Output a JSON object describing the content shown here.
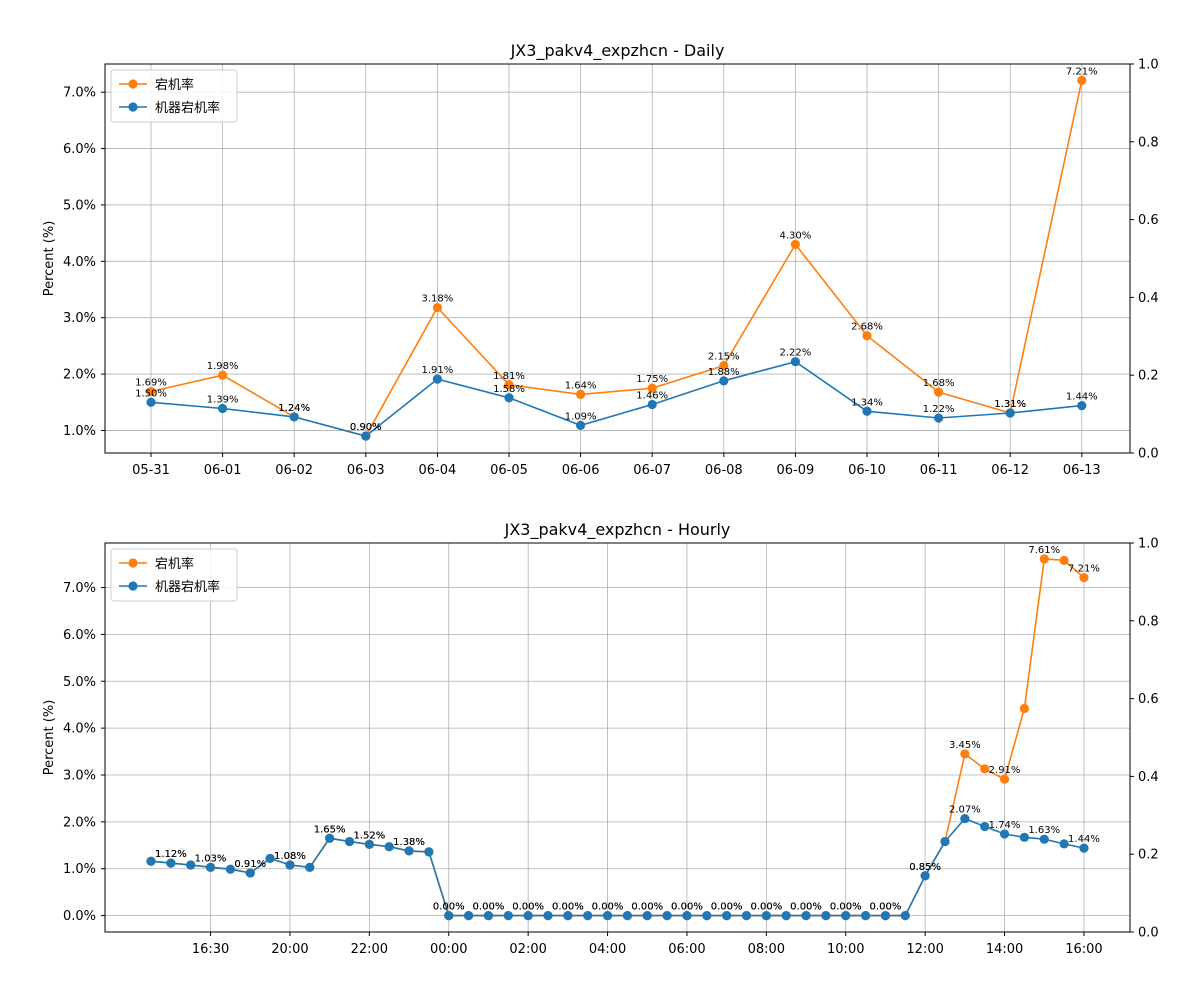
{
  "colors": {
    "series_a": "#ff7f0e",
    "series_b": "#1f77b4",
    "grid": "#b0b0b0"
  },
  "chart_data": [
    {
      "type": "line",
      "title": "JX3_pakv4_expzhcn - Daily",
      "ylabel": "Percent (%)",
      "x_tick_labels": [
        "05-31",
        "06-01",
        "06-02",
        "06-03",
        "06-04",
        "06-05",
        "06-06",
        "06-07",
        "06-08",
        "06-09",
        "06-10",
        "06-11",
        "06-12",
        "06-13"
      ],
      "ylim": [
        0.6,
        7.5
      ],
      "y_ticks": [
        1,
        2,
        3,
        4,
        5,
        6,
        7
      ],
      "y_tick_labels": [
        "1.0%",
        "2.0%",
        "3.0%",
        "4.0%",
        "5.0%",
        "6.0%",
        "7.0%"
      ],
      "y2_ticks": [
        0.0,
        0.2,
        0.4,
        0.6,
        0.8,
        1.0
      ],
      "y2_tick_labels": [
        "0.0",
        "0.2",
        "0.4",
        "0.6",
        "0.8",
        "1.0"
      ],
      "grid": true,
      "legend_position": "top-left",
      "series": [
        {
          "name": "宕机率",
          "values": [
            1.69,
            1.98,
            1.24,
            0.9,
            3.18,
            1.81,
            1.64,
            1.75,
            2.15,
            4.3,
            2.68,
            1.68,
            1.31,
            7.21
          ],
          "labels": [
            "1.69%",
            "1.98%",
            "1.24%",
            "0.90%",
            "3.18%",
            "1.81%",
            "1.64%",
            "1.75%",
            "2.15%",
            "4.30%",
            "2.68%",
            "1.68%",
            "1.31%",
            "7.21%"
          ]
        },
        {
          "name": "机器宕机率",
          "values": [
            1.5,
            1.39,
            1.24,
            0.9,
            1.91,
            1.58,
            1.09,
            1.46,
            1.88,
            2.22,
            1.34,
            1.22,
            1.31,
            1.44
          ],
          "labels": [
            "1.50%",
            "1.39%",
            "1.24%",
            "0.90%",
            "1.91%",
            "1.58%",
            "1.09%",
            "1.46%",
            "1.88%",
            "2.22%",
            "1.34%",
            "1.22%",
            "1.31%",
            "1.44%"
          ]
        }
      ]
    },
    {
      "type": "line",
      "title": "JX3_pakv4_expzhcn - Hourly",
      "ylabel": "Percent (%)",
      "x_tick_labels": [
        "16:30",
        "20:00",
        "22:00",
        "00:00",
        "02:00",
        "04:00",
        "06:00",
        "08:00",
        "10:00",
        "12:00",
        "14:00",
        "16:00"
      ],
      "x_tick_positions": [
        3,
        7,
        11,
        15,
        19,
        23,
        27,
        31,
        35,
        39,
        43,
        47
      ],
      "ylim": [
        -0.35,
        7.95
      ],
      "y_ticks": [
        0,
        1,
        2,
        3,
        4,
        5,
        6,
        7
      ],
      "y_tick_labels": [
        "0.0%",
        "1.0%",
        "2.0%",
        "3.0%",
        "4.0%",
        "5.0%",
        "6.0%",
        "7.0%"
      ],
      "y2_ticks": [
        0.0,
        0.2,
        0.4,
        0.6,
        0.8,
        1.0
      ],
      "y2_tick_labels": [
        "0.0",
        "0.2",
        "0.4",
        "0.6",
        "0.8",
        "1.0"
      ],
      "grid": true,
      "legend_position": "top-left",
      "series": [
        {
          "name": "宕机率",
          "values": [
            1.16,
            1.12,
            1.08,
            1.03,
            0.99,
            0.91,
            1.22,
            1.08,
            1.03,
            1.65,
            1.58,
            1.52,
            1.47,
            1.38,
            1.36,
            0.0,
            0.0,
            0.0,
            0.0,
            0.0,
            0.0,
            0.0,
            0.0,
            0.0,
            0.0,
            0.0,
            0.0,
            0.0,
            0.0,
            0.0,
            0.0,
            0.0,
            0.0,
            0.0,
            0.0,
            0.0,
            0.0,
            0.0,
            0.0,
            0.85,
            1.58,
            3.45,
            3.13,
            2.91,
            4.42,
            7.61,
            7.58,
            7.21
          ],
          "labels": [
            "",
            "1.12%",
            "",
            "1.03%",
            "",
            "0.91%",
            "",
            "1.08%",
            "",
            "1.65%",
            "",
            "1.52%",
            "",
            "1.38%",
            "",
            "0.00%",
            "",
            "0.00%",
            "",
            "0.00%",
            "",
            "0.00%",
            "",
            "0.00%",
            "",
            "0.00%",
            "",
            "0.00%",
            "",
            "0.00%",
            "",
            "0.00%",
            "",
            "0.00%",
            "",
            "0.00%",
            "",
            "0.00%",
            "",
            "0.85%",
            "",
            "3.45%",
            "",
            "2.91%",
            "",
            "7.61%",
            "",
            "7.21%"
          ]
        },
        {
          "name": "机器宕机率",
          "values": [
            1.16,
            1.12,
            1.08,
            1.03,
            0.99,
            0.91,
            1.22,
            1.08,
            1.03,
            1.65,
            1.58,
            1.52,
            1.47,
            1.38,
            1.36,
            0.0,
            0.0,
            0.0,
            0.0,
            0.0,
            0.0,
            0.0,
            0.0,
            0.0,
            0.0,
            0.0,
            0.0,
            0.0,
            0.0,
            0.0,
            0.0,
            0.0,
            0.0,
            0.0,
            0.0,
            0.0,
            0.0,
            0.0,
            0.0,
            0.85,
            1.58,
            2.07,
            1.9,
            1.74,
            1.67,
            1.63,
            1.53,
            1.44
          ],
          "labels": [
            "",
            "1.12%",
            "",
            "1.03%",
            "",
            "0.91%",
            "",
            "1.08%",
            "",
            "1.65%",
            "",
            "1.52%",
            "",
            "1.38%",
            "",
            "0.00%",
            "",
            "0.00%",
            "",
            "0.00%",
            "",
            "0.00%",
            "",
            "0.00%",
            "",
            "0.00%",
            "",
            "0.00%",
            "",
            "0.00%",
            "",
            "0.00%",
            "",
            "0.00%",
            "",
            "0.00%",
            "",
            "0.00%",
            "",
            "0.85%",
            "",
            "2.07%",
            "",
            "1.74%",
            "",
            "1.63%",
            "",
            "1.44%"
          ]
        }
      ]
    }
  ]
}
